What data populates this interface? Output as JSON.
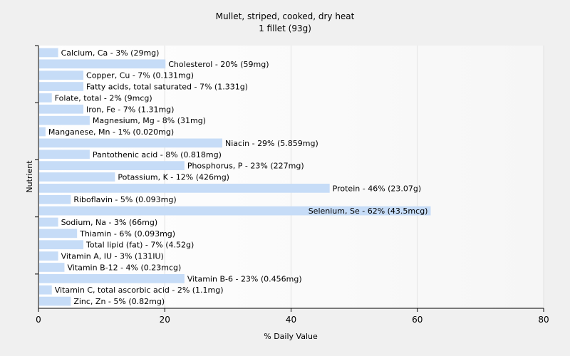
{
  "chart_data": {
    "type": "bar",
    "orientation": "horizontal",
    "title": "Mullet, striped, cooked, dry heat",
    "subtitle": "1 fillet (93g)",
    "xlabel": "% Daily Value",
    "ylabel": "Nutrient",
    "xlim": [
      0,
      80
    ],
    "xticks": [
      0,
      20,
      40,
      60,
      80
    ],
    "grid": true,
    "legend": "none",
    "bar_color": "#c6dcf7",
    "categories": [
      "Calcium, Ca",
      "Cholesterol",
      "Copper, Cu",
      "Fatty acids, total saturated",
      "Folate, total",
      "Iron, Fe",
      "Magnesium, Mg",
      "Manganese, Mn",
      "Niacin",
      "Pantothenic acid",
      "Phosphorus, P",
      "Potassium, K",
      "Protein",
      "Riboflavin",
      "Selenium, Se",
      "Sodium, Na",
      "Thiamin",
      "Total lipid (fat)",
      "Vitamin A, IU",
      "Vitamin B-12",
      "Vitamin B-6",
      "Vitamin C, total ascorbic acid",
      "Zinc, Zn"
    ],
    "values": [
      3,
      20,
      7,
      7,
      2,
      7,
      8,
      1,
      29,
      8,
      23,
      12,
      46,
      5,
      62,
      3,
      6,
      7,
      3,
      4,
      23,
      2,
      5
    ],
    "labels": [
      "Calcium, Ca - 3% (29mg)",
      "Cholesterol - 20% (59mg)",
      "Copper, Cu - 7% (0.131mg)",
      "Fatty acids, total saturated - 7% (1.331g)",
      "Folate, total - 2% (9mcg)",
      "Iron, Fe - 7% (1.31mg)",
      "Magnesium, Mg - 8% (31mg)",
      "Manganese, Mn - 1% (0.020mg)",
      "Niacin - 29% (5.859mg)",
      "Pantothenic acid - 8% (0.818mg)",
      "Phosphorus, P - 23% (227mg)",
      "Potassium, K - 12% (426mg)",
      "Protein - 46% (23.07g)",
      "Riboflavin - 5% (0.093mg)",
      "Selenium, Se - 62% (43.5mcg)",
      "Sodium, Na - 3% (66mg)",
      "Thiamin - 6% (0.093mg)",
      "Total lipid (fat) - 7% (4.52g)",
      "Vitamin A, IU - 3% (131IU)",
      "Vitamin B-12 - 4% (0.23mcg)",
      "Vitamin B-6 - 23% (0.456mg)",
      "Vitamin C, total ascorbic acid - 2% (1.1mg)",
      "Zinc, Zn - 5% (0.82mg)"
    ]
  }
}
